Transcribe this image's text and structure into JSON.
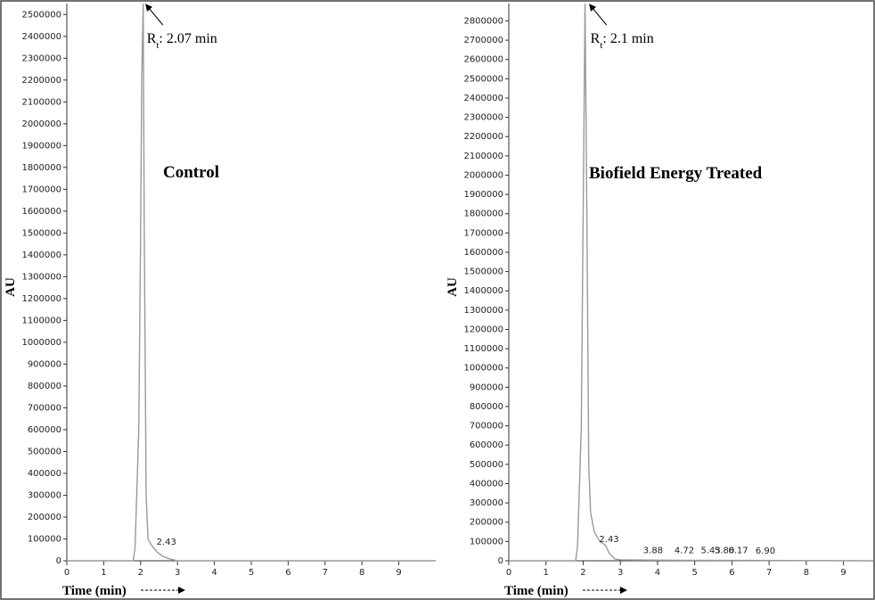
{
  "chart_data": [
    {
      "type": "line",
      "title": "Control",
      "x_label": "Time (min)",
      "y_label": "AU",
      "color": "#999999",
      "x": [
        0,
        1.8,
        1.85,
        1.95,
        2.0,
        2.03,
        2.07,
        2.1,
        2.15,
        2.2,
        2.3,
        2.45,
        2.6,
        2.8,
        3.0,
        10
      ],
      "values": [
        0,
        0,
        60000,
        600000,
        1500000,
        2200000,
        2550000,
        1500000,
        300000,
        100000,
        70000,
        40000,
        20000,
        8000,
        0,
        0
      ],
      "xlim": [
        0,
        10
      ],
      "xticks": [
        0,
        1,
        2,
        3,
        4,
        5,
        6,
        7,
        8,
        9
      ],
      "ylim": [
        0,
        2550000
      ],
      "yticks": [
        0,
        100000,
        200000,
        300000,
        400000,
        500000,
        600000,
        700000,
        800000,
        900000,
        1000000,
        1100000,
        1200000,
        1300000,
        1400000,
        1500000,
        1600000,
        1700000,
        1800000,
        1900000,
        2000000,
        2100000,
        2200000,
        2300000,
        2400000,
        2500000
      ],
      "retention": {
        "symbol": "R",
        "subscript": "t",
        "text": ": 2.07 min",
        "x": 2.07
      },
      "peaks": [
        {
          "x": 2.43,
          "y": 40000,
          "label": "2.43"
        }
      ]
    },
    {
      "type": "line",
      "title": "Biofield Energy Treated",
      "x_label": "Time (min)",
      "y_label": "AU",
      "color": "#999999",
      "x": [
        0,
        1.8,
        1.85,
        1.95,
        2.0,
        2.05,
        2.1,
        2.15,
        2.2,
        2.3,
        2.45,
        2.6,
        2.7,
        2.85,
        3.0,
        4.0,
        6.0,
        9.8
      ],
      "values": [
        0,
        0,
        80000,
        700000,
        1800000,
        2890000,
        1800000,
        500000,
        250000,
        150000,
        100000,
        80000,
        40000,
        10000,
        5000,
        3000,
        2000,
        0
      ],
      "xlim": [
        0,
        9.8
      ],
      "xticks": [
        0,
        1,
        2,
        3,
        4,
        5,
        6,
        7,
        8,
        9
      ],
      "ylim": [
        0,
        2890000
      ],
      "yticks": [
        0,
        100000,
        200000,
        300000,
        400000,
        500000,
        600000,
        700000,
        800000,
        900000,
        1000000,
        1100000,
        1200000,
        1300000,
        1400000,
        1500000,
        1600000,
        1700000,
        1800000,
        1900000,
        2000000,
        2100000,
        2200000,
        2300000,
        2400000,
        2500000,
        2600000,
        2700000,
        2800000
      ],
      "retention": {
        "symbol": "R",
        "subscript": "t",
        "text": ": 2.1 min",
        "x": 2.1
      },
      "peaks": [
        {
          "x": 2.43,
          "y": 60000,
          "label": "2.43"
        },
        {
          "x": 3.88,
          "y": 3000,
          "label": "3.88"
        },
        {
          "x": 4.72,
          "y": 3000,
          "label": "4.72"
        },
        {
          "x": 5.43,
          "y": 2000,
          "label": "5.43"
        },
        {
          "x": 5.8,
          "y": 2000,
          "label": "5.80"
        },
        {
          "x": 6.17,
          "y": 2000,
          "label": "6.17"
        },
        {
          "x": 6.9,
          "y": 1000,
          "label": "6.90"
        }
      ]
    }
  ]
}
